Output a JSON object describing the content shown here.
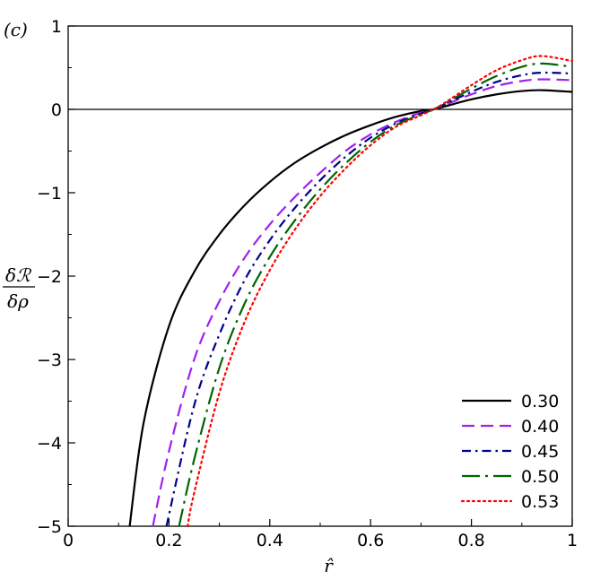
{
  "chart_data": {
    "type": "line",
    "panel_label": "(c)",
    "xlabel": "r̂",
    "ylabel_numerator": "δℛ",
    "ylabel_denominator": "δρ",
    "xlim": [
      0,
      1
    ],
    "ylim": [
      -5,
      1
    ],
    "x_ticks": [
      0,
      0.2,
      0.4,
      0.6,
      0.8,
      1
    ],
    "x_tick_labels": [
      "0",
      "0.2",
      "0.4",
      "0.6",
      "0.8",
      "1"
    ],
    "y_ticks": [
      1,
      0,
      -1,
      -2,
      -3,
      -4,
      -5
    ],
    "y_tick_labels": [
      "1",
      "0",
      "−1",
      "−2",
      "−3",
      "−4",
      "−5"
    ],
    "grid": false,
    "reference_line_y": 0,
    "legend_position": "bottom-right",
    "series": [
      {
        "name": "0.30",
        "color": "#000000",
        "dash": "solid",
        "x": [
          0.122,
          0.15,
          0.2,
          0.25,
          0.3,
          0.35,
          0.4,
          0.45,
          0.5,
          0.55,
          0.6,
          0.65,
          0.7,
          0.725,
          0.75,
          0.8,
          0.85,
          0.9,
          0.94,
          1.0
        ],
        "y": [
          -5.0,
          -3.75,
          -2.6,
          -1.95,
          -1.5,
          -1.15,
          -0.87,
          -0.64,
          -0.46,
          -0.31,
          -0.19,
          -0.09,
          -0.02,
          0.0,
          0.04,
          0.12,
          0.18,
          0.22,
          0.23,
          0.21
        ]
      },
      {
        "name": "0.40",
        "color": "#a020f0",
        "dash": "long-dash",
        "x": [
          0.168,
          0.2,
          0.25,
          0.3,
          0.35,
          0.4,
          0.45,
          0.5,
          0.55,
          0.6,
          0.65,
          0.7,
          0.725,
          0.75,
          0.8,
          0.85,
          0.9,
          0.94,
          1.0
        ],
        "y": [
          -5.0,
          -4.1,
          -3.0,
          -2.3,
          -1.78,
          -1.38,
          -1.05,
          -0.76,
          -0.5,
          -0.3,
          -0.15,
          -0.04,
          0.0,
          0.06,
          0.18,
          0.28,
          0.34,
          0.36,
          0.35
        ]
      },
      {
        "name": "0.45",
        "color": "#00008b",
        "dash": "dash-dot",
        "x": [
          0.195,
          0.25,
          0.3,
          0.35,
          0.4,
          0.45,
          0.5,
          0.55,
          0.6,
          0.65,
          0.7,
          0.725,
          0.75,
          0.8,
          0.85,
          0.9,
          0.94,
          1.0
        ],
        "y": [
          -5.0,
          -3.55,
          -2.7,
          -2.05,
          -1.57,
          -1.18,
          -0.85,
          -0.57,
          -0.34,
          -0.17,
          -0.05,
          0.0,
          0.07,
          0.21,
          0.33,
          0.41,
          0.44,
          0.43
        ]
      },
      {
        "name": "0.50",
        "color": "#006400",
        "dash": "long-dash-dot",
        "x": [
          0.22,
          0.25,
          0.3,
          0.35,
          0.4,
          0.45,
          0.5,
          0.55,
          0.6,
          0.65,
          0.7,
          0.725,
          0.75,
          0.8,
          0.85,
          0.9,
          0.94,
          1.0
        ],
        "y": [
          -5.0,
          -4.2,
          -3.1,
          -2.33,
          -1.77,
          -1.33,
          -0.96,
          -0.65,
          -0.39,
          -0.19,
          -0.06,
          0.0,
          0.08,
          0.25,
          0.4,
          0.51,
          0.55,
          0.51
        ]
      },
      {
        "name": "0.53",
        "color": "#ff0000",
        "dash": "dotted",
        "x": [
          0.237,
          0.25,
          0.3,
          0.35,
          0.4,
          0.45,
          0.5,
          0.55,
          0.6,
          0.65,
          0.7,
          0.725,
          0.75,
          0.8,
          0.85,
          0.9,
          0.94,
          1.0
        ],
        "y": [
          -5.0,
          -4.6,
          -3.4,
          -2.55,
          -1.93,
          -1.44,
          -1.04,
          -0.71,
          -0.43,
          -0.21,
          -0.07,
          0.0,
          0.09,
          0.29,
          0.47,
          0.59,
          0.64,
          0.58
        ]
      }
    ]
  }
}
